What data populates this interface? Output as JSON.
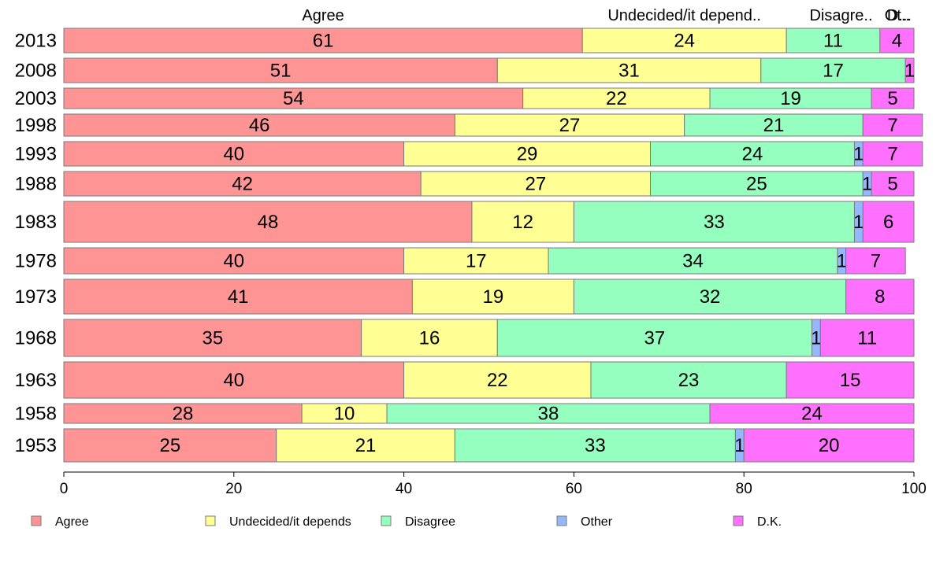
{
  "chart_data": {
    "type": "bar",
    "orientation": "horizontal",
    "stacked": true,
    "xlim": [
      0,
      100
    ],
    "x_ticks": [
      "0",
      "20",
      "40",
      "60",
      "80",
      "100"
    ],
    "categories": [
      "2013",
      "2008",
      "2003",
      "1998",
      "1993",
      "1988",
      "1983",
      "1978",
      "1973",
      "1968",
      "1963",
      "1958",
      "1953"
    ],
    "bar_thickness": [
      31,
      31,
      26,
      28,
      31,
      31,
      52,
      33,
      44,
      47,
      46,
      25,
      42
    ],
    "top_headers": [
      "Agree",
      "Undecided/it depend..",
      "Disagre..",
      "Ot..",
      "D..."
    ],
    "series": [
      {
        "name": "Agree",
        "color": "#ff9494",
        "values": [
          61,
          51,
          54,
          46,
          40,
          42,
          48,
          40,
          41,
          35,
          40,
          28,
          25
        ]
      },
      {
        "name": "Undecided/it depends",
        "color": "#ffff94",
        "values": [
          24,
          31,
          22,
          27,
          29,
          27,
          12,
          17,
          19,
          16,
          22,
          10,
          21
        ]
      },
      {
        "name": "Disagree",
        "color": "#94ffbf",
        "values": [
          11,
          17,
          19,
          21,
          24,
          25,
          33,
          34,
          32,
          37,
          23,
          38,
          33
        ]
      },
      {
        "name": "Other",
        "color": "#94b8ff",
        "values": [
          0,
          0,
          0,
          0,
          1,
          1,
          1,
          1,
          0,
          1,
          0,
          0,
          1
        ]
      },
      {
        "name": "D.K.",
        "color": "#ff70ff",
        "values": [
          4,
          1,
          5,
          7,
          7,
          5,
          6,
          7,
          8,
          11,
          15,
          24,
          20
        ]
      }
    ],
    "segment_labels": [
      [
        "61",
        "24",
        "11",
        "",
        "4"
      ],
      [
        "51",
        "31",
        "17",
        "",
        "1"
      ],
      [
        "54",
        "22",
        "19",
        "",
        "5"
      ],
      [
        "46",
        "27",
        "21",
        "",
        "7"
      ],
      [
        "40",
        "29",
        "24",
        "1",
        "7"
      ],
      [
        "42",
        "27",
        "25",
        "1",
        "5"
      ],
      [
        "48",
        "12",
        "33",
        "1",
        "6"
      ],
      [
        "40",
        "17",
        "34",
        "1",
        "7"
      ],
      [
        "41",
        "19",
        "32",
        "",
        "8"
      ],
      [
        "35",
        "16",
        "37",
        "1",
        "11"
      ],
      [
        "40",
        "22",
        "23",
        "",
        "15"
      ],
      [
        "28",
        "10",
        "38",
        "",
        "24"
      ],
      [
        "25",
        "21",
        "33",
        "1",
        "20"
      ]
    ],
    "legend": [
      "Agree",
      "Undecided/it depends",
      "Disagree",
      "Other",
      "D.K."
    ],
    "legend_position": "bottom",
    "grid": false
  }
}
